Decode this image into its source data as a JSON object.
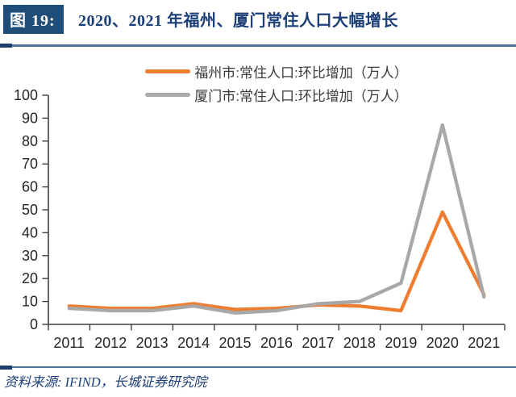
{
  "figure": {
    "tag": "图 19:",
    "title": "2020、2021 年福州、厦门常住人口大幅增长"
  },
  "source": "资料来源: IFIND，长城证券研究院",
  "colors": {
    "header_box": "#1F4E79",
    "title_text": "#1B3F76",
    "rule": "#4C7499",
    "rule_cap": "#1E3C6E",
    "axis": "#404040",
    "tick_label": "#262626",
    "fuzhou_line": "#ED7D31",
    "xiamen_line": "#A8A8A8"
  },
  "chart_data": {
    "type": "line",
    "title": "2020、2021 年福州、厦门常住人口大幅增长",
    "xlabel": "",
    "ylabel": "",
    "categories": [
      "2011",
      "2012",
      "2013",
      "2014",
      "2015",
      "2016",
      "2017",
      "2018",
      "2019",
      "2020",
      "2021"
    ],
    "series": [
      {
        "name": "福州市:常住人口:环比增加（万人）",
        "color": "#ED7D31",
        "values": [
          8,
          7,
          7,
          9,
          6.5,
          7,
          8.5,
          8,
          6,
          49,
          13
        ]
      },
      {
        "name": "厦门市:常住人口:环比增加（万人）",
        "color": "#A8A8A8",
        "values": [
          7,
          6,
          6,
          8,
          5,
          6,
          9,
          10,
          18,
          87,
          12
        ]
      }
    ],
    "ylim": [
      0,
      100
    ],
    "yticks": [
      0,
      10,
      20,
      30,
      40,
      50,
      60,
      70,
      80,
      90,
      100
    ],
    "grid": false,
    "legend_position": "top-center"
  }
}
